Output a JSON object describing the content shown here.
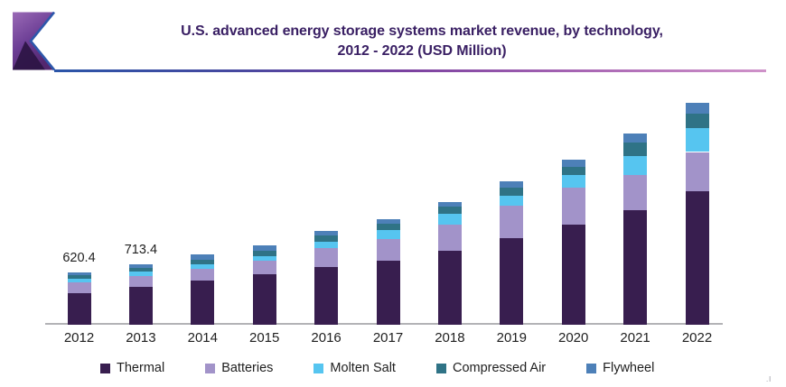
{
  "header": {
    "title_line1": "U.S. advanced energy storage systems market revenue, by technology,",
    "title_line2": "2012 - 2022 (USD Million)",
    "title_color": "#3a2064",
    "accent_line_gradient": [
      "#2b55a8",
      "#7c42a0",
      "#cf92c9"
    ],
    "ribbon_icon": "purple-flag-ribbon"
  },
  "chart_data": {
    "type": "bar",
    "stacked": true,
    "title": "U.S. advanced energy storage systems market revenue, by technology, 2012 - 2022 (USD Million)",
    "unit": "USD Million",
    "categories": [
      "2012",
      "2013",
      "2014",
      "2015",
      "2016",
      "2017",
      "2018",
      "2019",
      "2020",
      "2021",
      "2022"
    ],
    "series": [
      {
        "name": "Thermal",
        "color": "#381e4f",
        "values": [
          370.0,
          444.0,
          522,
          594,
          683,
          762,
          880,
          1029,
          1182,
          1361,
          1581
        ]
      },
      {
        "name": "Batteries",
        "color": "#a293c9",
        "values": [
          128.0,
          130.0,
          143,
          160,
          221,
          249,
          303,
          385,
          446,
          410,
          464
        ]
      },
      {
        "name": "Molten Salt",
        "color": "#56c5f0",
        "values": [
          43.0,
          56.0,
          54,
          54,
          75,
          107,
          132,
          113,
          142,
          225,
          278
        ]
      },
      {
        "name": "Compressed Air",
        "color": "#2f7386",
        "values": [
          43.0,
          42.0,
          54,
          72,
          78,
          75,
          82,
          93,
          100,
          157,
          171
        ]
      },
      {
        "name": "Flywheel",
        "color": "#4d80b8",
        "values": [
          36.4,
          41.4,
          57,
          60,
          54,
          61,
          54,
          78,
          86,
          107,
          132
        ]
      }
    ],
    "data_labels": [
      {
        "category_index": 0,
        "text": "620.4"
      },
      {
        "category_index": 1,
        "text": "713.4"
      }
    ],
    "y_axis_visible": false,
    "grid": false,
    "legend_position": "bottom",
    "axis_line_color": "#b3b3b6",
    "label_color": "#1f1f1f"
  },
  "misc": {
    "stray_mark": ".l"
  }
}
